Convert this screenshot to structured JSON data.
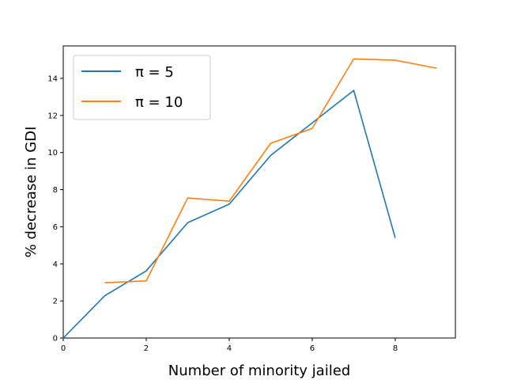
{
  "chart_data": {
    "type": "line",
    "xlabel": "Number of minority jailed",
    "ylabel": "% decrease in GDI",
    "xlim": [
      0,
      9.45
    ],
    "ylim": [
      0,
      15.75
    ],
    "xticks": [
      "0",
      "2",
      "4",
      "6",
      "8"
    ],
    "yticks": [
      "0",
      "2",
      "4",
      "6",
      "8",
      "10",
      "12",
      "14"
    ],
    "legend_position": "top-left",
    "grid": false,
    "series": [
      {
        "name": "π = 5",
        "color": "#1f77b4",
        "x": [
          0,
          1,
          2,
          3,
          4,
          5,
          6,
          7,
          8
        ],
        "y": [
          0.0,
          2.28,
          3.62,
          6.22,
          7.22,
          9.85,
          11.6,
          13.35,
          5.4
        ]
      },
      {
        "name": "π = 10",
        "color": "#ff7f0e",
        "x": [
          1,
          2,
          3,
          4,
          5,
          6,
          7,
          8,
          9
        ],
        "y": [
          2.98,
          3.08,
          7.55,
          7.38,
          10.5,
          11.3,
          15.05,
          14.98,
          14.55
        ]
      }
    ]
  }
}
